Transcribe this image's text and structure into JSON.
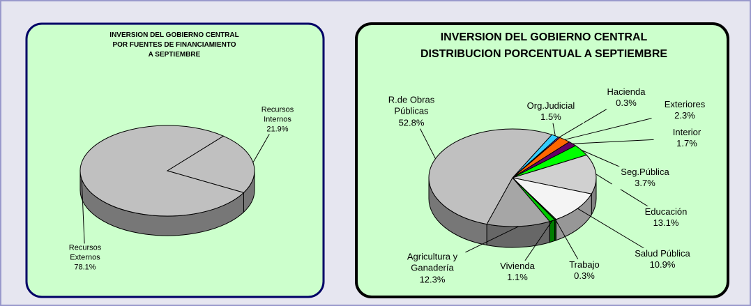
{
  "chart_data": [
    {
      "type": "pie",
      "title": "INVERSION DEL GOBIERNO CENTRAL\nPOR FUENTES DE FINANCIAMIENTO\nA SEPTIEMBRE",
      "categories": [
        "Recursos Internos",
        "Recursos Externos"
      ],
      "values": [
        21.9,
        78.1
      ],
      "value_labels": [
        "21.9%",
        "78.1%"
      ],
      "colors": [
        "#c0c0c0",
        "#c0c0c0"
      ]
    },
    {
      "type": "pie",
      "title": "INVERSION DEL GOBIERNO CENTRAL\nDISTRIBUCION PORCENTUAL A SEPTIEMBRE",
      "categories": [
        "Org.Judicial",
        "Hacienda",
        "Exteriores",
        "Interior",
        "Seg.Pública",
        "Educación",
        "Salud Pública",
        "Trabajo",
        "Vivienda",
        "Agricultura y Ganadería",
        "R.de Obras Públicas"
      ],
      "values": [
        1.5,
        0.3,
        2.3,
        1.7,
        3.7,
        13.1,
        10.9,
        0.3,
        1.1,
        12.3,
        52.8
      ],
      "value_labels": [
        "1.5%",
        "0.3%",
        "2.3%",
        "1.7%",
        "3.7%",
        "13.1%",
        "10.9%",
        "0.3%",
        "1.1%",
        "12.3%",
        "52.8%"
      ],
      "colors": [
        "#33ccff",
        "#9933cc",
        "#ff6600",
        "#660066",
        "#00ff00",
        "#d0d0d0",
        "#f4f4f4",
        "#006600",
        "#00cc00",
        "#a6a6a6",
        "#c0c0c0"
      ]
    }
  ]
}
